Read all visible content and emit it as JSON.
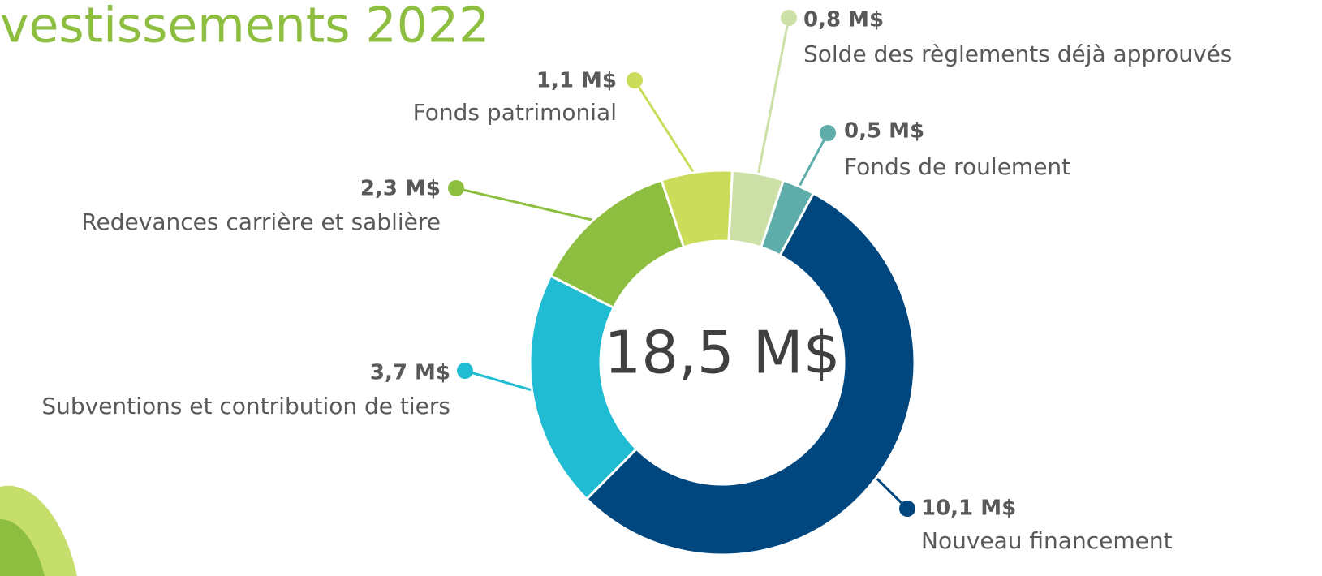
{
  "chart_data": {
    "type": "donut",
    "title": "vestissements 2022",
    "center_label": "18,5 M$",
    "categories": [
      "Solde des règlements déjà approuvés",
      "Fonds de roulement",
      "Nouveau financement",
      "Subventions et contribution de tiers",
      "Redevances carrière et sablière",
      "Fonds patrimonial"
    ],
    "values": [
      0.8,
      0.5,
      10.1,
      3.7,
      2.3,
      1.1
    ],
    "value_labels": [
      "0,8 M$",
      "0,5 M$",
      "10,1 M$",
      "3,7 M$",
      "2,3 M$",
      "1,1 M$"
    ],
    "colors": [
      "#cde0a8",
      "#5fadaa",
      "#00477f",
      "#1fbcd3",
      "#8dbe3f",
      "#cbdb5a"
    ]
  }
}
